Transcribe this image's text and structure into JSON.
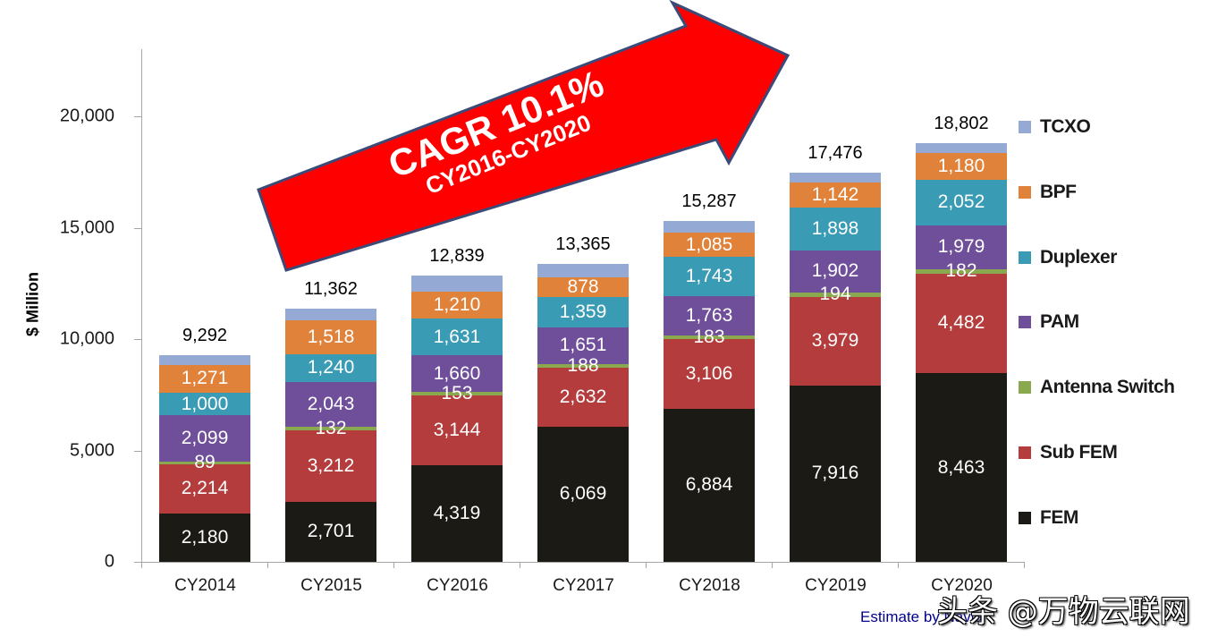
{
  "chart_data": {
    "type": "bar",
    "stacked": true,
    "title": "",
    "xlabel": "",
    "ylabel": "$ Million",
    "ylim": [
      0,
      20000
    ],
    "y_ticks": [
      "0",
      "5,000",
      "10,000",
      "15,000",
      "20,000"
    ],
    "y_tick_values": [
      0,
      5000,
      10000,
      15000,
      20000
    ],
    "grid": false,
    "legend_position": "right",
    "categories": [
      "CY2014",
      "CY2015",
      "CY2016",
      "CY2017",
      "CY2018",
      "CY2019",
      "CY2020"
    ],
    "series": [
      {
        "name": "FEM",
        "color": "#1c1a14",
        "values": [
          2180,
          2701,
          4319,
          6069,
          6884,
          7916,
          8463
        ],
        "labels": [
          "2,180",
          "2,701",
          "4,319",
          "6,069",
          "6,884",
          "7,916",
          "8,463"
        ]
      },
      {
        "name": "Sub FEM",
        "color": "#b43c3c",
        "values": [
          2214,
          3212,
          3144,
          2632,
          3106,
          3979,
          4482
        ],
        "labels": [
          "2,214",
          "3,212",
          "3,144",
          "2,632",
          "3,106",
          "3,979",
          "4,482"
        ]
      },
      {
        "name": "Antenna Switch",
        "color": "#8aa84e",
        "values": [
          89,
          132,
          153,
          188,
          183,
          194,
          182
        ],
        "labels": [
          "89",
          "132",
          "153",
          "188",
          "183",
          "194",
          "182"
        ]
      },
      {
        "name": "PAM",
        "color": "#6f4f9a",
        "values": [
          2099,
          2043,
          1660,
          1651,
          1763,
          1902,
          1979
        ],
        "labels": [
          "2,099",
          "2,043",
          "1,660",
          "1,651",
          "1,763",
          "1,902",
          "1,979"
        ]
      },
      {
        "name": "Duplexer",
        "color": "#3a9bb5",
        "values": [
          1000,
          1240,
          1631,
          1359,
          1743,
          1898,
          2052
        ],
        "labels": [
          "1,000",
          "1,240",
          "1,631",
          "1,359",
          "1,743",
          "1,898",
          "2,052"
        ]
      },
      {
        "name": "BPF",
        "color": "#e0823a",
        "values": [
          1271,
          1518,
          1210,
          878,
          1085,
          1142,
          1180
        ],
        "labels": [
          "1,271",
          "1,518",
          "1,210",
          "878",
          "1,085",
          "1,142",
          "1,180"
        ]
      },
      {
        "name": "TCXO",
        "color": "#94aad4",
        "values": [
          439,
          516,
          722,
          588,
          523,
          445,
          464
        ],
        "labels": [
          "",
          "",
          "",
          "",
          "",
          "",
          ""
        ]
      }
    ],
    "totals": [
      9292,
      11362,
      12839,
      13365,
      15287,
      17476,
      18802
    ],
    "total_labels": [
      "9,292",
      "11,362",
      "12,839",
      "13,365",
      "15,287",
      "17,476",
      "18,802"
    ],
    "legend": [
      "TCXO",
      "BPF",
      "Duplexer",
      "PAM",
      "Antenna Switch",
      "Sub FEM",
      "FEM"
    ],
    "annotations": [
      {
        "text": "CAGR 10.1%",
        "type": "arrow-callout"
      },
      {
        "text": "CY2016-CY2020",
        "type": "arrow-callout"
      },
      {
        "text": "Estimate by Navian",
        "type": "source-note"
      }
    ]
  },
  "annotation": {
    "cagr_main": "CAGR 10.1%",
    "cagr_range": "CY2016-CY2020",
    "arrow_color": "#ff0000",
    "arrow_border": "#3c4a78"
  },
  "source_note": "Estimate by Navian",
  "watermark": "头条 @万物云联网"
}
